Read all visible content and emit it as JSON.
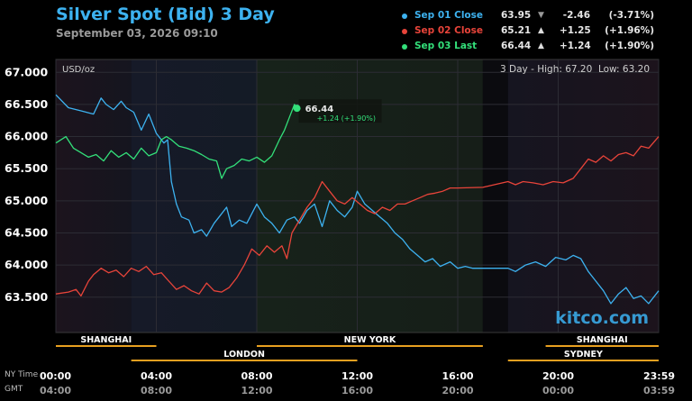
{
  "header": {
    "title": "Silver Spot (Bid) 3 Day",
    "date": "September 03, 2026 09:10"
  },
  "legend": [
    {
      "label": "Sep 01 Close",
      "value": "63.95",
      "arrow": "▼",
      "change": "-2.46",
      "pct": "(-3.71%)",
      "color": "#3db2f0"
    },
    {
      "label": "Sep 02 Close",
      "value": "65.21",
      "arrow": "▲",
      "change": "+1.25",
      "pct": "(+1.96%)",
      "color": "#e8443a"
    },
    {
      "label": "Sep 03 Last",
      "value": "66.44",
      "arrow": "▲",
      "change": "+1.24",
      "pct": "(+1.90%)",
      "color": "#33e07a"
    }
  ],
  "plot": {
    "unit": "USD/oz",
    "range_text": "3 Day - High: 67.20  Low: 63.20",
    "watermark": "kitco.com",
    "last_value_label": "66.44",
    "last_change_label": "+1.24 (+1.90%)"
  },
  "chart_data": {
    "type": "line",
    "ylim": [
      62.95,
      67.2
    ],
    "xlim": [
      0,
      24
    ],
    "y_ticks": [
      {
        "value": 67.0,
        "label": "67.000"
      },
      {
        "value": 66.5,
        "label": "66.500"
      },
      {
        "value": 66.0,
        "label": "66.000"
      },
      {
        "value": 65.5,
        "label": "65.500"
      },
      {
        "value": 65.0,
        "label": "65.000"
      },
      {
        "value": 64.5,
        "label": "64.500"
      },
      {
        "value": 64.0,
        "label": "64.000"
      },
      {
        "value": 63.5,
        "label": "63.500"
      }
    ],
    "x_ticks": [
      {
        "value": 0,
        "ny": "00:00",
        "gmt": "04:00"
      },
      {
        "value": 4,
        "ny": "04:00",
        "gmt": "08:00"
      },
      {
        "value": 8,
        "ny": "08:00",
        "gmt": "12:00"
      },
      {
        "value": 12,
        "ny": "12:00",
        "gmt": "16:00"
      },
      {
        "value": 16,
        "ny": "16:00",
        "gmt": "20:00"
      },
      {
        "value": 20,
        "ny": "20:00",
        "gmt": "00:00"
      },
      {
        "value": 24,
        "ny": "23:59",
        "gmt": "03:59"
      }
    ],
    "axis_row_labels": {
      "ny": "NY Time",
      "gmt": "GMT"
    },
    "sessions": [
      {
        "name": "SHANGHAI",
        "start": 0,
        "end": 4,
        "row": 1
      },
      {
        "name": "NEW YORK",
        "start": 8,
        "end": 17,
        "row": 1
      },
      {
        "name": "SHANGHAI",
        "start": 19.5,
        "end": 24,
        "row": 1
      },
      {
        "name": "LONDON",
        "start": 3,
        "end": 12,
        "row": 2
      },
      {
        "name": "SYDNEY",
        "start": 18,
        "end": 24,
        "row": 2
      }
    ],
    "series": [
      {
        "name": "Sep 01 Close",
        "color": "#3db2f0",
        "points": [
          [
            0,
            66.65
          ],
          [
            0.5,
            66.45
          ],
          [
            1,
            66.4
          ],
          [
            1.5,
            66.35
          ],
          [
            1.8,
            66.6
          ],
          [
            2,
            66.5
          ],
          [
            2.3,
            66.42
          ],
          [
            2.6,
            66.55
          ],
          [
            2.8,
            66.45
          ],
          [
            3.1,
            66.38
          ],
          [
            3.4,
            66.1
          ],
          [
            3.7,
            66.35
          ],
          [
            4,
            66.05
          ],
          [
            4.3,
            65.9
          ],
          [
            4.45,
            65.95
          ],
          [
            4.6,
            65.3
          ],
          [
            4.8,
            64.95
          ],
          [
            5,
            64.75
          ],
          [
            5.3,
            64.7
          ],
          [
            5.5,
            64.5
          ],
          [
            5.8,
            64.55
          ],
          [
            6,
            64.45
          ],
          [
            6.3,
            64.65
          ],
          [
            6.5,
            64.75
          ],
          [
            6.8,
            64.9
          ],
          [
            7,
            64.6
          ],
          [
            7.3,
            64.7
          ],
          [
            7.6,
            64.65
          ],
          [
            8,
            64.95
          ],
          [
            8.3,
            64.75
          ],
          [
            8.6,
            64.65
          ],
          [
            8.9,
            64.5
          ],
          [
            9.2,
            64.7
          ],
          [
            9.5,
            64.75
          ],
          [
            9.7,
            64.65
          ],
          [
            10,
            64.85
          ],
          [
            10.3,
            64.95
          ],
          [
            10.6,
            64.6
          ],
          [
            10.9,
            65.0
          ],
          [
            11.2,
            64.85
          ],
          [
            11.5,
            64.75
          ],
          [
            11.8,
            64.9
          ],
          [
            12,
            65.15
          ],
          [
            12.3,
            64.95
          ],
          [
            12.6,
            64.85
          ],
          [
            12.9,
            64.75
          ],
          [
            13.2,
            64.65
          ],
          [
            13.5,
            64.5
          ],
          [
            13.8,
            64.4
          ],
          [
            14.1,
            64.25
          ],
          [
            14.4,
            64.15
          ],
          [
            14.7,
            64.05
          ],
          [
            15,
            64.1
          ],
          [
            15.3,
            63.98
          ],
          [
            15.7,
            64.05
          ],
          [
            16,
            63.95
          ],
          [
            16.3,
            63.98
          ],
          [
            16.6,
            63.95
          ],
          [
            17,
            63.95
          ],
          [
            18,
            63.95
          ],
          [
            18.3,
            63.9
          ],
          [
            18.7,
            64.0
          ],
          [
            19.1,
            64.05
          ],
          [
            19.5,
            63.98
          ],
          [
            19.9,
            64.12
          ],
          [
            20.3,
            64.08
          ],
          [
            20.6,
            64.15
          ],
          [
            20.9,
            64.1
          ],
          [
            21.2,
            63.9
          ],
          [
            21.5,
            63.75
          ],
          [
            21.8,
            63.6
          ],
          [
            22.1,
            63.4
          ],
          [
            22.4,
            63.55
          ],
          [
            22.7,
            63.65
          ],
          [
            23,
            63.48
          ],
          [
            23.3,
            63.52
          ],
          [
            23.6,
            63.4
          ],
          [
            24,
            63.6
          ]
        ]
      },
      {
        "name": "Sep 02 Close",
        "color": "#e8443a",
        "points": [
          [
            0,
            63.55
          ],
          [
            0.5,
            63.58
          ],
          [
            0.8,
            63.62
          ],
          [
            1,
            63.52
          ],
          [
            1.3,
            63.75
          ],
          [
            1.5,
            63.85
          ],
          [
            1.8,
            63.95
          ],
          [
            2.1,
            63.88
          ],
          [
            2.4,
            63.92
          ],
          [
            2.7,
            63.82
          ],
          [
            3,
            63.95
          ],
          [
            3.3,
            63.9
          ],
          [
            3.6,
            63.98
          ],
          [
            3.9,
            63.85
          ],
          [
            4.2,
            63.88
          ],
          [
            4.5,
            63.75
          ],
          [
            4.8,
            63.62
          ],
          [
            5.1,
            63.68
          ],
          [
            5.4,
            63.6
          ],
          [
            5.7,
            63.55
          ],
          [
            6,
            63.72
          ],
          [
            6.3,
            63.6
          ],
          [
            6.6,
            63.58
          ],
          [
            6.9,
            63.65
          ],
          [
            7.2,
            63.8
          ],
          [
            7.5,
            64.0
          ],
          [
            7.8,
            64.25
          ],
          [
            8.1,
            64.15
          ],
          [
            8.4,
            64.3
          ],
          [
            8.7,
            64.2
          ],
          [
            9,
            64.3
          ],
          [
            9.2,
            64.1
          ],
          [
            9.4,
            64.5
          ],
          [
            9.7,
            64.7
          ],
          [
            10,
            64.9
          ],
          [
            10.3,
            65.05
          ],
          [
            10.6,
            65.3
          ],
          [
            10.9,
            65.15
          ],
          [
            11.2,
            65.0
          ],
          [
            11.5,
            64.95
          ],
          [
            11.8,
            65.05
          ],
          [
            12.1,
            64.95
          ],
          [
            12.4,
            64.85
          ],
          [
            12.7,
            64.8
          ],
          [
            13,
            64.9
          ],
          [
            13.3,
            64.85
          ],
          [
            13.6,
            64.95
          ],
          [
            13.9,
            64.95
          ],
          [
            14.2,
            65.0
          ],
          [
            14.5,
            65.05
          ],
          [
            14.8,
            65.1
          ],
          [
            15.1,
            65.12
          ],
          [
            15.4,
            65.15
          ],
          [
            15.7,
            65.2
          ],
          [
            16,
            65.2
          ],
          [
            17,
            65.21
          ],
          [
            18,
            65.3
          ],
          [
            18.3,
            65.25
          ],
          [
            18.6,
            65.3
          ],
          [
            19,
            65.28
          ],
          [
            19.4,
            65.25
          ],
          [
            19.8,
            65.3
          ],
          [
            20.2,
            65.28
          ],
          [
            20.6,
            65.35
          ],
          [
            20.9,
            65.5
          ],
          [
            21.2,
            65.65
          ],
          [
            21.5,
            65.6
          ],
          [
            21.8,
            65.7
          ],
          [
            22.1,
            65.62
          ],
          [
            22.4,
            65.72
          ],
          [
            22.7,
            65.75
          ],
          [
            23,
            65.7
          ],
          [
            23.3,
            65.85
          ],
          [
            23.6,
            65.82
          ],
          [
            24,
            66.0
          ]
        ]
      },
      {
        "name": "Sep 03 Last",
        "color": "#33e07a",
        "points": [
          [
            0,
            65.9
          ],
          [
            0.4,
            66.0
          ],
          [
            0.7,
            65.82
          ],
          [
            1,
            65.75
          ],
          [
            1.3,
            65.68
          ],
          [
            1.6,
            65.72
          ],
          [
            1.9,
            65.62
          ],
          [
            2.2,
            65.78
          ],
          [
            2.5,
            65.68
          ],
          [
            2.8,
            65.75
          ],
          [
            3.1,
            65.65
          ],
          [
            3.4,
            65.82
          ],
          [
            3.7,
            65.7
          ],
          [
            4,
            65.75
          ],
          [
            4.2,
            65.95
          ],
          [
            4.4,
            66.0
          ],
          [
            4.6,
            65.95
          ],
          [
            4.9,
            65.85
          ],
          [
            5.2,
            65.82
          ],
          [
            5.5,
            65.78
          ],
          [
            5.8,
            65.72
          ],
          [
            6.1,
            65.65
          ],
          [
            6.4,
            65.62
          ],
          [
            6.6,
            65.35
          ],
          [
            6.8,
            65.5
          ],
          [
            7.1,
            65.55
          ],
          [
            7.4,
            65.65
          ],
          [
            7.7,
            65.62
          ],
          [
            8,
            65.68
          ],
          [
            8.3,
            65.6
          ],
          [
            8.6,
            65.7
          ],
          [
            8.9,
            65.95
          ],
          [
            9.1,
            66.1
          ],
          [
            9.3,
            66.3
          ],
          [
            9.5,
            66.5
          ],
          [
            9.6,
            66.44
          ]
        ]
      }
    ]
  }
}
